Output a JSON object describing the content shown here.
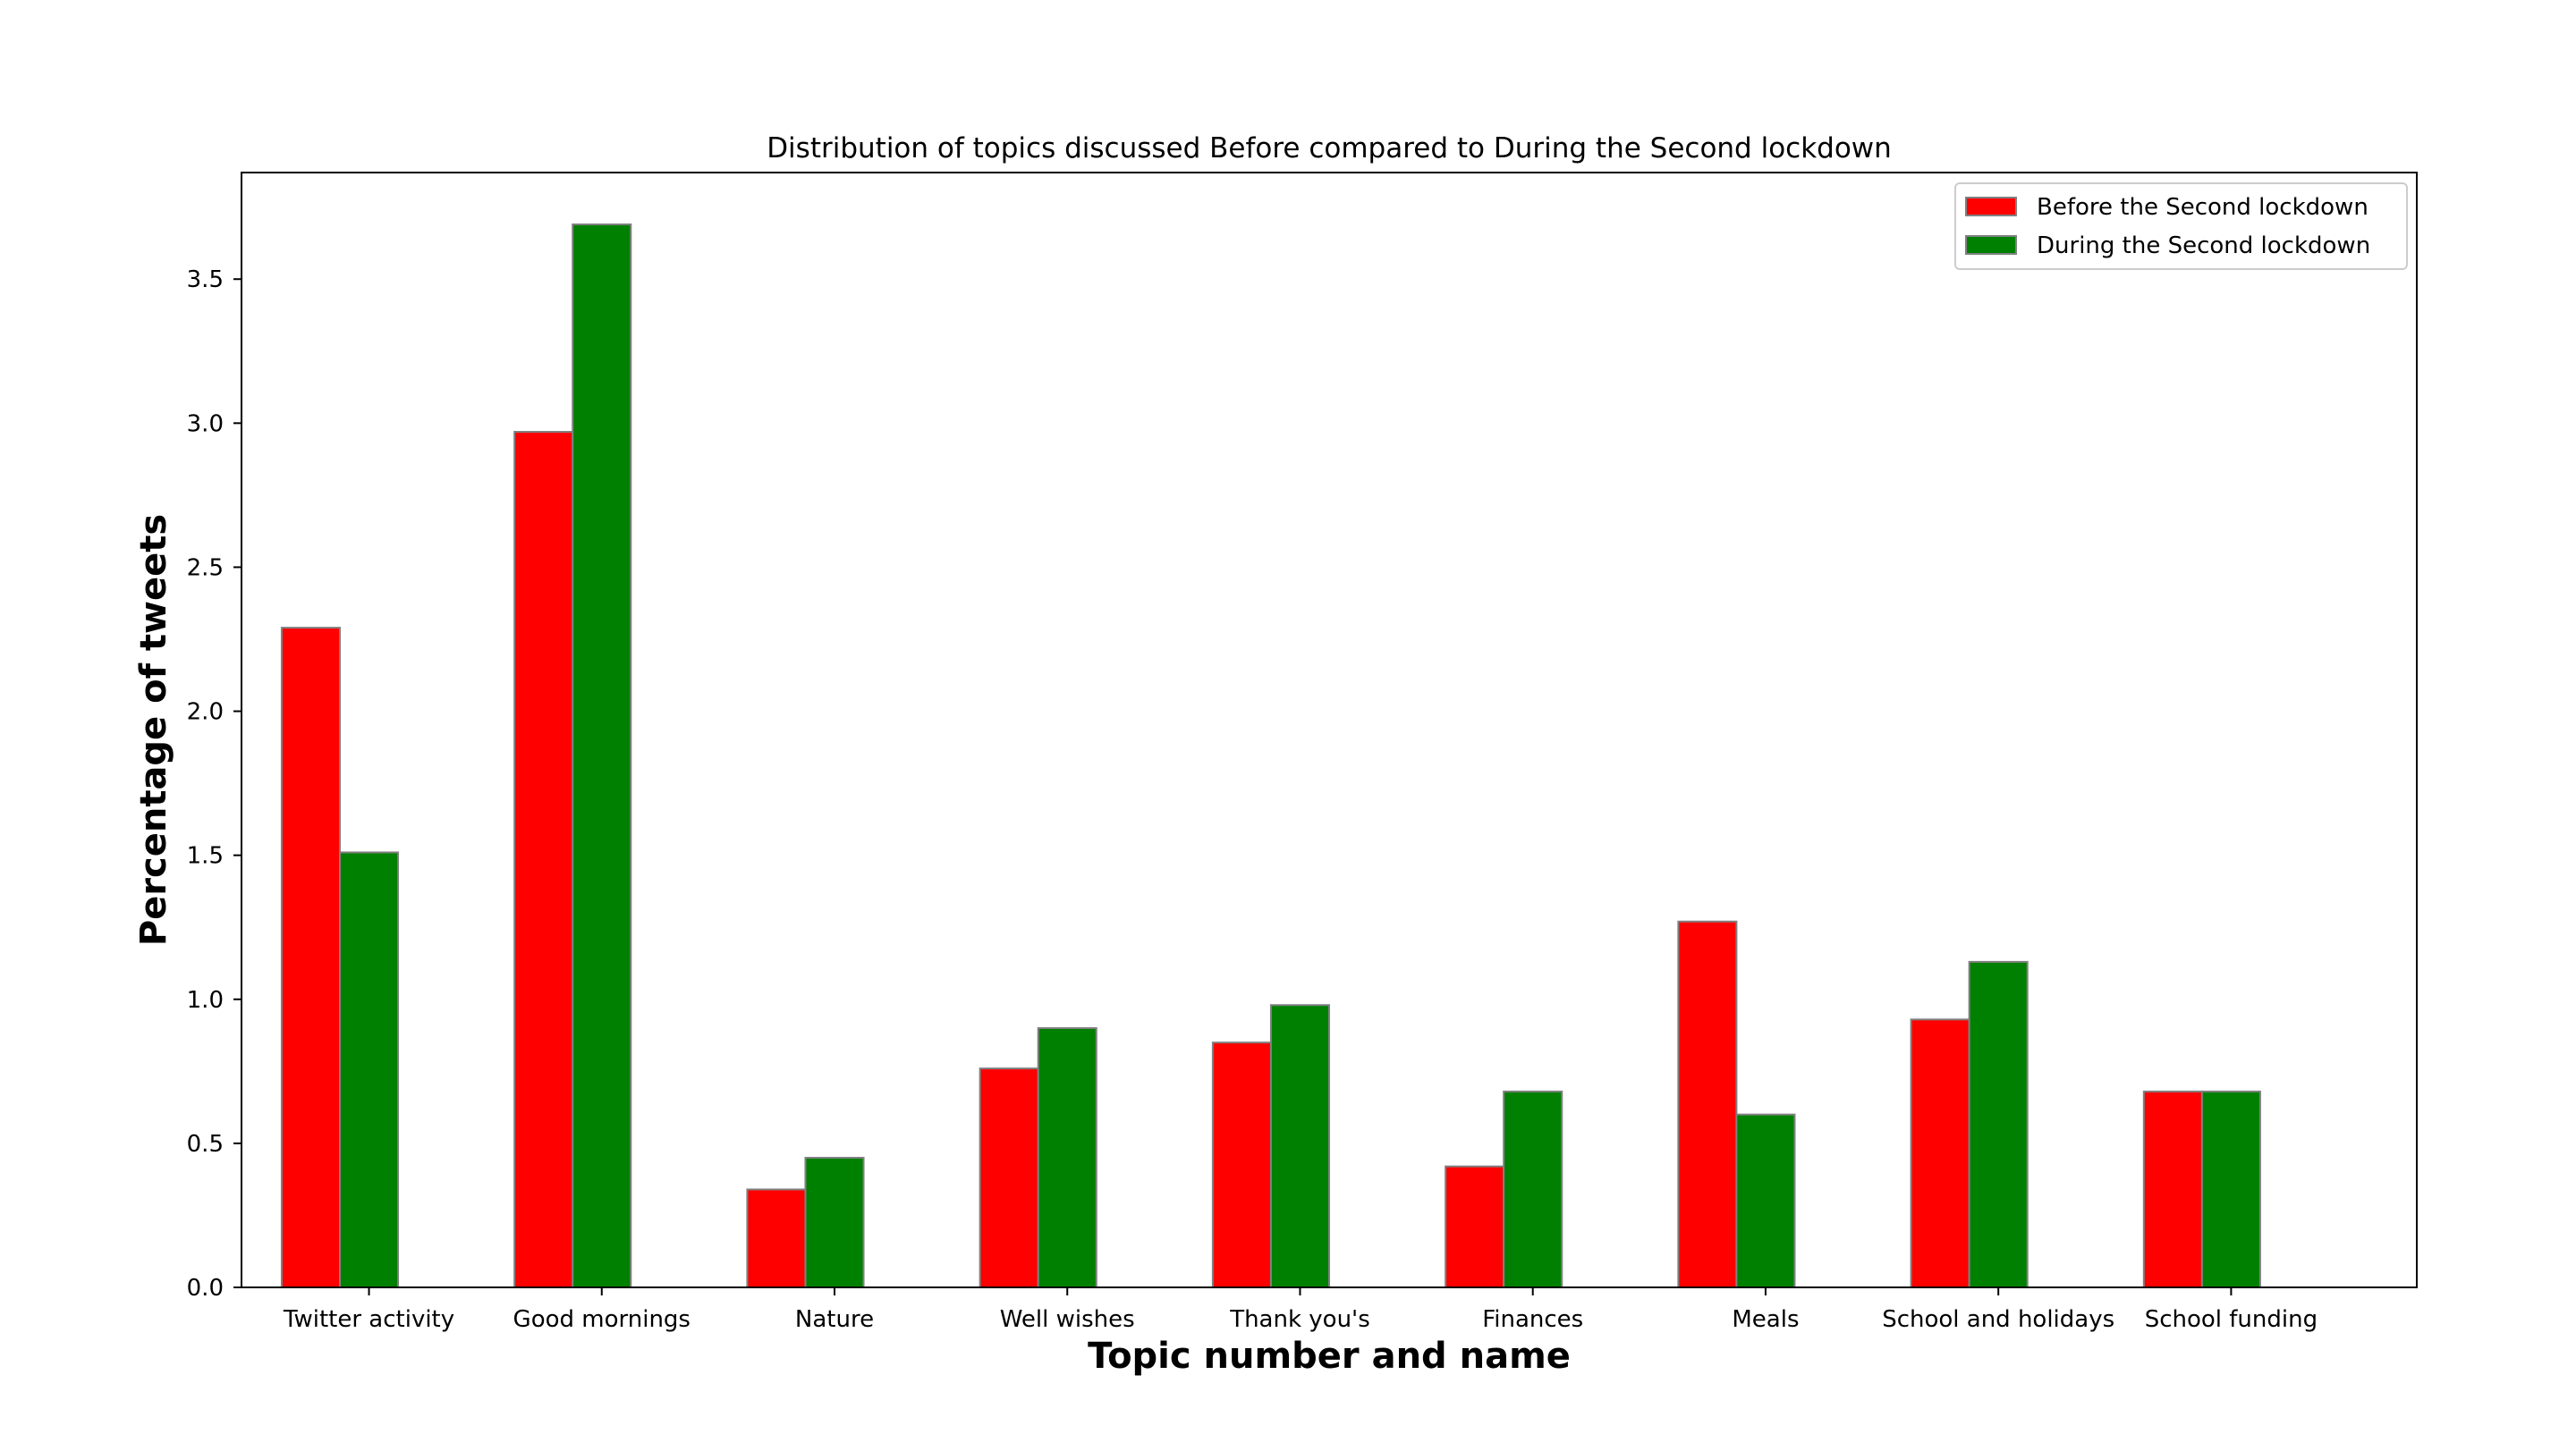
{
  "chart_data": {
    "type": "bar",
    "title": "Distribution of topics discussed Before compared to During the Second lockdown",
    "xlabel": "Topic number and name",
    "ylabel": "Percentage of tweets",
    "categories": [
      "Twitter activity",
      "Good mornings",
      "Nature",
      "Well wishes",
      "Thank you's",
      "Finances",
      "Meals",
      "School and  holidays",
      "School funding"
    ],
    "series": [
      {
        "name": "Before the Second lockdown",
        "color": "#ff0000",
        "values": [
          2.29,
          2.97,
          0.34,
          0.76,
          0.85,
          0.42,
          1.27,
          0.93,
          0.68
        ]
      },
      {
        "name": "During the Second lockdown",
        "color": "#008000",
        "values": [
          1.51,
          3.69,
          0.45,
          0.9,
          0.98,
          0.68,
          0.6,
          1.13,
          0.68
        ]
      }
    ],
    "ylim": [
      0,
      3.87
    ],
    "yticks": [
      "0.0",
      "0.5",
      "1.0",
      "1.5",
      "2.0",
      "2.5",
      "3.0",
      "3.5"
    ],
    "grid": false,
    "legend_position": "top-right",
    "bar_edge_color": "#808080"
  }
}
